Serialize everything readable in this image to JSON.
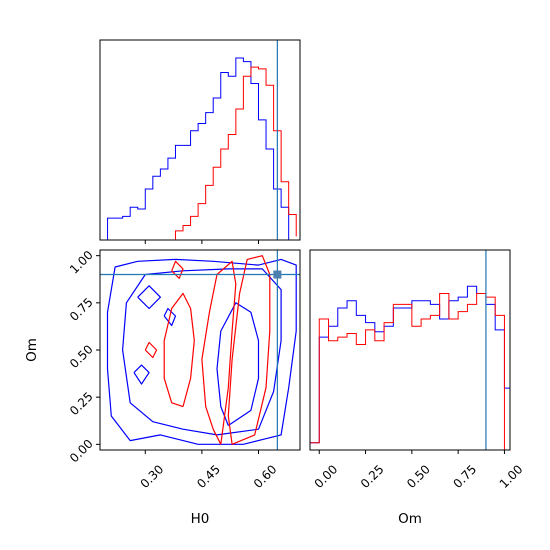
{
  "chart_data": [
    {
      "type": "histogram",
      "panel": "H0-marginal",
      "xlim": [
        0.18,
        0.71
      ],
      "ylim": [
        0,
        1
      ],
      "truth_x": 0.65,
      "bins": [
        0.18,
        0.2,
        0.22,
        0.24,
        0.26,
        0.28,
        0.3,
        0.32,
        0.34,
        0.36,
        0.38,
        0.4,
        0.42,
        0.44,
        0.46,
        0.48,
        0.5,
        0.52,
        0.54,
        0.56,
        0.58,
        0.6,
        0.62,
        0.64,
        0.66,
        0.68,
        0.7
      ],
      "series": [
        {
          "color": "#0000ff",
          "values": [
            0.0,
            0.12,
            0.12,
            0.13,
            0.18,
            0.17,
            0.28,
            0.35,
            0.39,
            0.45,
            0.52,
            0.52,
            0.6,
            0.64,
            0.7,
            0.78,
            0.92,
            0.9,
            1.0,
            0.98,
            0.86,
            0.66,
            0.5,
            0.28,
            0.18,
            0.0
          ]
        },
        {
          "color": "#ff0000",
          "values": [
            0.0,
            0.0,
            0.0,
            0.0,
            0.0,
            0.0,
            0.0,
            0.0,
            0.0,
            0.0,
            0.05,
            0.08,
            0.13,
            0.2,
            0.3,
            0.4,
            0.5,
            0.58,
            0.72,
            0.9,
            0.95,
            0.94,
            0.85,
            0.6,
            0.32,
            0.14,
            0.02
          ]
        }
      ]
    },
    {
      "type": "contour",
      "panel": "H0-vs-Om",
      "xlabel": "H0",
      "ylabel": "Om",
      "xlim": [
        0.18,
        0.71
      ],
      "ylim": [
        -0.03,
        1.03
      ],
      "xticks": [
        "0.30",
        "0.45",
        "0.60"
      ],
      "yticks": [
        "0.00",
        "0.25",
        "0.50",
        "0.75",
        "1.00"
      ],
      "truth": [
        0.65,
        0.9
      ],
      "series": [
        {
          "color": "#0000ff",
          "contours": [
            [
              [
                0.44,
                0.0
              ],
              [
                0.56,
                0.0
              ],
              [
                0.66,
                0.05
              ],
              [
                0.68,
                0.3
              ],
              [
                0.7,
                0.6
              ],
              [
                0.7,
                0.95
              ],
              [
                0.66,
                0.98
              ],
              [
                0.6,
                0.95
              ],
              [
                0.48,
                0.97
              ],
              [
                0.38,
                0.98
              ],
              [
                0.28,
                0.97
              ],
              [
                0.22,
                0.94
              ],
              [
                0.2,
                0.7
              ],
              [
                0.2,
                0.4
              ],
              [
                0.21,
                0.15
              ],
              [
                0.26,
                0.02
              ],
              [
                0.34,
                0.05
              ],
              [
                0.44,
                0.0
              ]
            ],
            [
              [
                0.49,
                0.05
              ],
              [
                0.6,
                0.08
              ],
              [
                0.64,
                0.28
              ],
              [
                0.66,
                0.55
              ],
              [
                0.66,
                0.82
              ],
              [
                0.61,
                0.93
              ],
              [
                0.52,
                0.93
              ],
              [
                0.4,
                0.92
              ],
              [
                0.3,
                0.9
              ],
              [
                0.25,
                0.75
              ],
              [
                0.24,
                0.5
              ],
              [
                0.26,
                0.22
              ],
              [
                0.32,
                0.12
              ],
              [
                0.4,
                0.08
              ],
              [
                0.49,
                0.05
              ]
            ],
            [
              [
                0.52,
                0.1
              ],
              [
                0.58,
                0.18
              ],
              [
                0.6,
                0.35
              ],
              [
                0.6,
                0.55
              ],
              [
                0.58,
                0.7
              ],
              [
                0.54,
                0.75
              ],
              [
                0.5,
                0.6
              ],
              [
                0.49,
                0.4
              ],
              [
                0.5,
                0.2
              ],
              [
                0.52,
                0.1
              ]
            ],
            [
              [
                0.28,
                0.78
              ],
              [
                0.31,
                0.72
              ],
              [
                0.34,
                0.78
              ],
              [
                0.31,
                0.84
              ],
              [
                0.28,
                0.78
              ]
            ],
            [
              [
                0.35,
                0.68
              ],
              [
                0.37,
                0.63
              ],
              [
                0.38,
                0.68
              ],
              [
                0.36,
                0.72
              ],
              [
                0.35,
                0.68
              ]
            ],
            [
              [
                0.27,
                0.38
              ],
              [
                0.29,
                0.32
              ],
              [
                0.31,
                0.38
              ],
              [
                0.29,
                0.42
              ],
              [
                0.27,
                0.38
              ]
            ]
          ]
        },
        {
          "color": "#ff0000",
          "contours": [
            [
              [
                0.53,
                0.0
              ],
              [
                0.59,
                0.05
              ],
              [
                0.62,
                0.3
              ],
              [
                0.63,
                0.6
              ],
              [
                0.63,
                0.9
              ],
              [
                0.61,
                1.0
              ],
              [
                0.57,
                0.98
              ],
              [
                0.55,
                0.8
              ],
              [
                0.53,
                0.45
              ],
              [
                0.52,
                0.15
              ],
              [
                0.53,
                0.0
              ]
            ],
            [
              [
                0.5,
                0.0
              ],
              [
                0.52,
                0.3
              ],
              [
                0.53,
                0.6
              ],
              [
                0.54,
                0.85
              ],
              [
                0.53,
                0.97
              ],
              [
                0.49,
                0.9
              ],
              [
                0.47,
                0.7
              ],
              [
                0.45,
                0.45
              ],
              [
                0.46,
                0.2
              ],
              [
                0.48,
                0.08
              ],
              [
                0.5,
                0.0
              ]
            ],
            [
              [
                0.4,
                0.2
              ],
              [
                0.42,
                0.35
              ],
              [
                0.43,
                0.55
              ],
              [
                0.42,
                0.72
              ],
              [
                0.4,
                0.8
              ],
              [
                0.37,
                0.72
              ],
              [
                0.35,
                0.55
              ],
              [
                0.35,
                0.35
              ],
              [
                0.37,
                0.22
              ],
              [
                0.4,
                0.2
              ]
            ],
            [
              [
                0.3,
                0.5
              ],
              [
                0.32,
                0.46
              ],
              [
                0.33,
                0.5
              ],
              [
                0.31,
                0.54
              ],
              [
                0.3,
                0.5
              ]
            ],
            [
              [
                0.37,
                0.92
              ],
              [
                0.39,
                0.88
              ],
              [
                0.4,
                0.93
              ],
              [
                0.38,
                0.97
              ],
              [
                0.37,
                0.92
              ]
            ]
          ]
        }
      ]
    },
    {
      "type": "histogram",
      "panel": "Om-marginal",
      "xlabel": "Om",
      "xlim": [
        -0.05,
        1.03
      ],
      "ylim": [
        0,
        1
      ],
      "xticks": [
        "0.00",
        "0.25",
        "0.50",
        "0.75",
        "1.00"
      ],
      "truth_x": 0.9,
      "bins": [
        -0.05,
        0.0,
        0.05,
        0.1,
        0.15,
        0.2,
        0.25,
        0.3,
        0.35,
        0.4,
        0.45,
        0.5,
        0.55,
        0.6,
        0.65,
        0.7,
        0.75,
        0.8,
        0.85,
        0.9,
        0.95,
        1.0,
        1.03
      ],
      "series": [
        {
          "color": "#0000ff",
          "values": [
            0.04,
            0.62,
            0.68,
            0.78,
            0.82,
            0.74,
            0.7,
            0.65,
            0.68,
            0.78,
            0.78,
            0.82,
            0.82,
            0.8,
            0.72,
            0.82,
            0.84,
            0.9,
            0.86,
            0.8,
            0.66,
            0.34
          ]
        },
        {
          "color": "#ff0000",
          "values": [
            0.04,
            0.72,
            0.6,
            0.62,
            0.64,
            0.58,
            0.66,
            0.6,
            0.7,
            0.8,
            0.8,
            0.68,
            0.72,
            0.74,
            0.86,
            0.72,
            0.76,
            0.8,
            0.86,
            0.84,
            0.74,
            0.0
          ]
        }
      ]
    }
  ]
}
